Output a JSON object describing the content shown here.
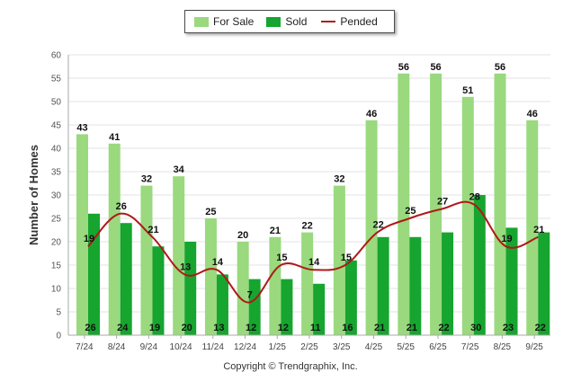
{
  "chart_data": {
    "type": "bar",
    "title": "",
    "xlabel": "",
    "ylabel": "Number of Homes",
    "ylim": [
      0,
      60
    ],
    "yticks": [
      "0",
      "5",
      "10",
      "15",
      "20",
      "25",
      "30",
      "35",
      "40",
      "45",
      "50",
      "55",
      "60"
    ],
    "categories": [
      "7/24",
      "8/24",
      "9/24",
      "10/24",
      "11/24",
      "12/24",
      "1/25",
      "2/25",
      "3/25",
      "4/25",
      "5/25",
      "6/25",
      "7/25",
      "8/25",
      "9/25"
    ],
    "series": [
      {
        "name": "For Sale",
        "kind": "bar",
        "color": "#9ad97e",
        "values": [
          43,
          41,
          32,
          34,
          25,
          20,
          21,
          22,
          32,
          46,
          56,
          56,
          51,
          56,
          46
        ]
      },
      {
        "name": "Sold",
        "kind": "bar",
        "color": "#16a52f",
        "values": [
          26,
          24,
          19,
          20,
          13,
          12,
          12,
          11,
          16,
          21,
          21,
          22,
          30,
          23,
          22
        ]
      },
      {
        "name": "Pended",
        "kind": "line",
        "color": "#b01818",
        "values": [
          19,
          26,
          21,
          13,
          14,
          7,
          15,
          14,
          15,
          22,
          25,
          27,
          28,
          19,
          21
        ]
      }
    ],
    "legend": {
      "position": "top-center",
      "items": [
        "For Sale",
        "Sold",
        "Pended"
      ]
    }
  },
  "footer": {
    "copyright": "Copyright © Trendgraphix, Inc."
  }
}
